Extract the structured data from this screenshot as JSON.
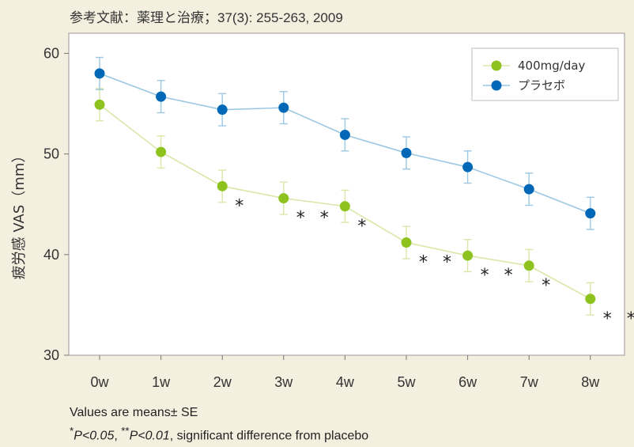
{
  "reference": "参考文献：薬理と治療；37(3): 255-263, 2009",
  "footnotes": {
    "line1": "Values are means± SE",
    "sig1_sym": "*",
    "sig1_p": "P<0.05",
    "sep": ", ",
    "sig2_sym": "**",
    "sig2_p": "P<0.01",
    "sig_tail": ", significant difference from placebo"
  },
  "colors": {
    "background": "#f5efe0",
    "series_400": "#8dc21f",
    "series_400_line": "#d9e7a8",
    "series_placebo": "#0068b7",
    "series_placebo_line": "#9cc8e3"
  },
  "chart_data": {
    "type": "line",
    "ylabel": "疲労感 VAS（mm）",
    "xlabel": "",
    "categories": [
      "0w",
      "1w",
      "2w",
      "3w",
      "4w",
      "5w",
      "6w",
      "7w",
      "8w"
    ],
    "ylim": [
      30,
      62
    ],
    "yticks": [
      30,
      40,
      50,
      60
    ],
    "legend_position": "top-right",
    "grid": false,
    "series": [
      {
        "name": "400mg/day",
        "values": [
          54.9,
          50.2,
          46.8,
          45.6,
          44.8,
          41.2,
          39.9,
          38.9,
          35.6
        ],
        "errors": [
          1.6,
          1.6,
          1.6,
          1.6,
          1.6,
          1.6,
          1.6,
          1.6,
          1.6
        ],
        "significance": [
          "",
          "",
          "*",
          "**",
          "*",
          "**",
          "**",
          "*",
          "**"
        ]
      },
      {
        "name": "プラセボ",
        "values": [
          58.0,
          55.7,
          54.4,
          54.6,
          51.9,
          50.1,
          48.7,
          46.5,
          44.1
        ],
        "errors": [
          1.6,
          1.6,
          1.6,
          1.6,
          1.6,
          1.6,
          1.6,
          1.6,
          1.6
        ]
      }
    ]
  }
}
